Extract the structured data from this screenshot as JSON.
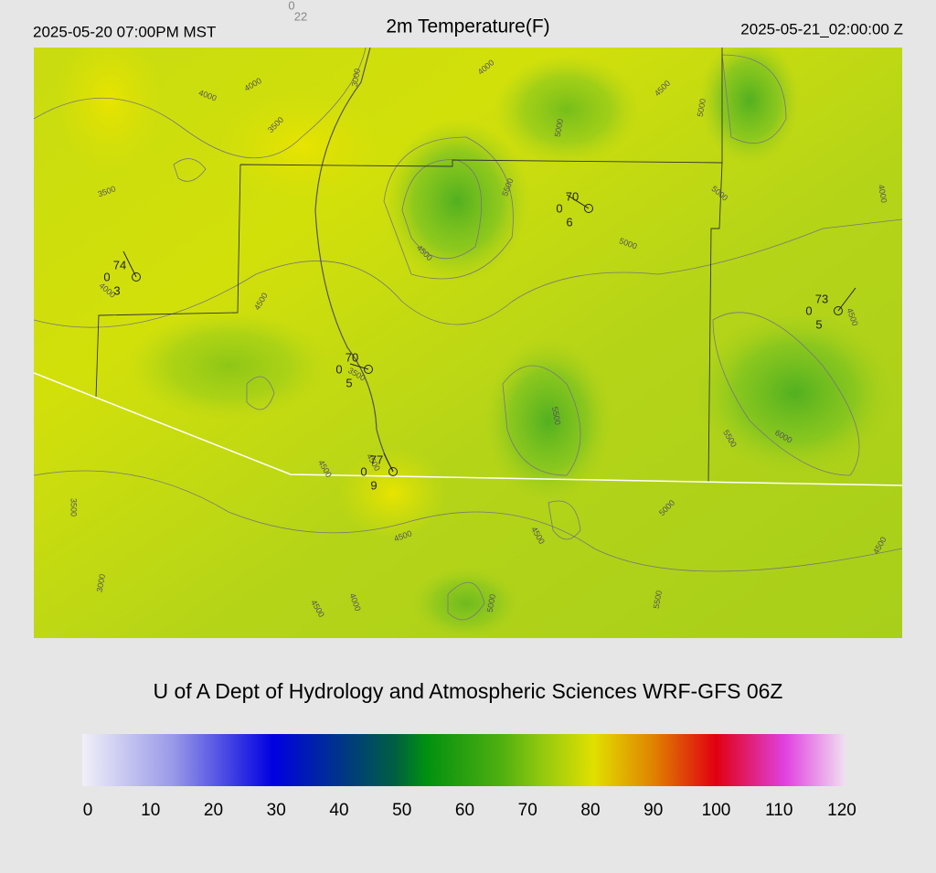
{
  "header": {
    "valid_local": "2025-05-20 07:00PM MST",
    "title": "2m Temperature(F)",
    "valid_utc": "2025-05-21_02:00:00 Z",
    "marker_top": "0",
    "marker_bottom": "22"
  },
  "stations": [
    {
      "temperature": "74",
      "left": "0",
      "bottom": "3"
    },
    {
      "temperature": "70",
      "left": "0",
      "bottom": "6"
    },
    {
      "temperature": "73",
      "left": "0",
      "bottom": "5"
    },
    {
      "temperature": "70",
      "left": "0",
      "bottom": "5"
    },
    {
      "temperature": "77",
      "left": "0",
      "bottom": "9"
    }
  ],
  "contour_labels": [
    "4000",
    "4000",
    "4000",
    "3000",
    "3500",
    "4500",
    "5000",
    "5000",
    "5500",
    "5000",
    "4000",
    "3500",
    "4500",
    "5000",
    "4000",
    "4500",
    "4500",
    "3500",
    "5500",
    "5500",
    "6000",
    "4500",
    "4500",
    "3500",
    "5000",
    "4500",
    "4500",
    "4500",
    "3000",
    "4000",
    "4500",
    "5000",
    "5500"
  ],
  "credit": "U of A Dept of Hydrology and Atmospheric Sciences WRF-GFS 06Z",
  "colorbar": {
    "ticks": [
      0,
      10,
      20,
      30,
      40,
      50,
      60,
      70,
      80,
      90,
      100,
      110,
      120
    ]
  }
}
